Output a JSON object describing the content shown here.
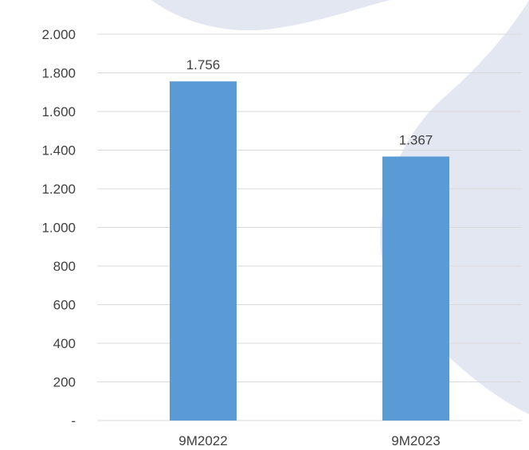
{
  "chart_data": {
    "type": "bar",
    "categories": [
      "9M2022",
      "9M2023"
    ],
    "values": [
      1756,
      1367
    ],
    "data_labels": [
      "1.756",
      "1.367"
    ],
    "ylim": [
      0,
      2000
    ],
    "y_ticks": [
      0,
      200,
      400,
      600,
      800,
      1000,
      1200,
      1400,
      1600,
      1800,
      2000
    ],
    "y_tick_labels": [
      "-",
      "200",
      "400",
      "600",
      "800",
      "1.000",
      "1.200",
      "1.400",
      "1.600",
      "1.800",
      "2.000"
    ],
    "grid": true,
    "legend": "none",
    "colors": {
      "bar": "#5b9bd5",
      "gridline": "#d9d9d9",
      "text": "#404040",
      "background_shape": "#e3e7f1"
    }
  }
}
